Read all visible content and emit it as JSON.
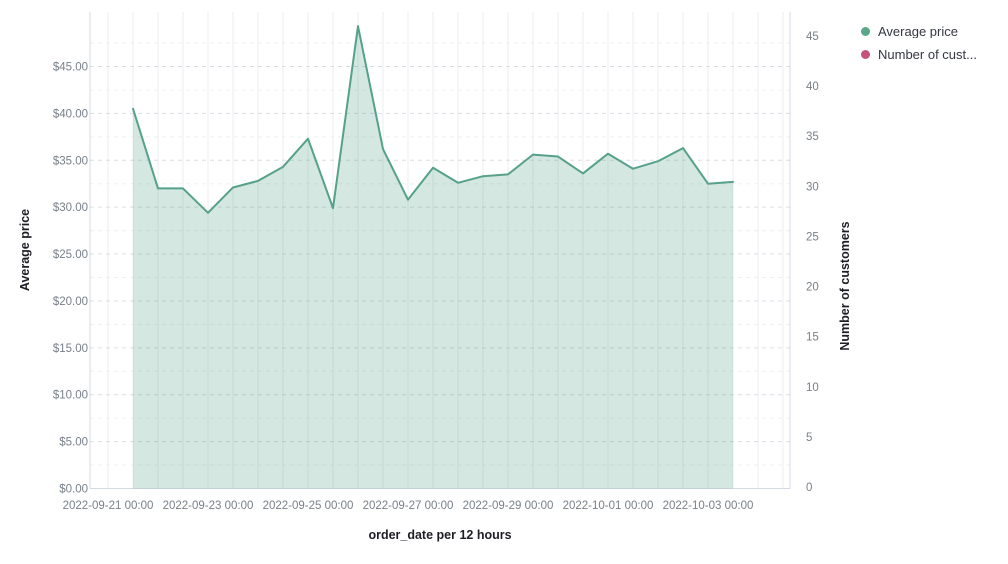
{
  "colors": {
    "line": "#55A189",
    "area_fill": "rgba(85,161,137,0.25)",
    "legend_average_price": "#5AA78A",
    "legend_customers": "#C4537B",
    "grid_vertical": "#e9edf0",
    "grid_major": "#d9dde3",
    "grid_minor": "#edf0f3",
    "axis_line": "#d3dae6",
    "tick_text": "#798089",
    "title_text": "#1d1e24"
  },
  "chart_data": {
    "type": "area",
    "title": "",
    "xlabel": "order_date per 12 hours",
    "ylabel": "Average price",
    "ylabel_right": "Number of customers",
    "ylim_left": [
      0,
      45
    ],
    "ylim_right": [
      0,
      45
    ],
    "grid": true,
    "legend": {
      "position": "top-right",
      "items": [
        {
          "label": "Average price",
          "color": "#5AA78A"
        },
        {
          "label": "Number of cust...",
          "color": "#C4537B"
        }
      ]
    },
    "axes": {
      "left_ticks": [
        "$0.00",
        "$5.00",
        "$10.00",
        "$15.00",
        "$20.00",
        "$25.00",
        "$30.00",
        "$35.00",
        "$40.00",
        "$45.00"
      ],
      "right_ticks": [
        "0",
        "5",
        "10",
        "15",
        "20",
        "25",
        "30",
        "35",
        "40",
        "45"
      ],
      "bottom_ticks": [
        "2022-09-21 00:00",
        "2022-09-23 00:00",
        "2022-09-25 00:00",
        "2022-09-27 00:00",
        "2022-09-29 00:00",
        "2022-10-01 00:00",
        "2022-10-03 00:00"
      ]
    },
    "series": [
      {
        "name": "Average price",
        "axis": "left",
        "x": [
          "2022-09-21 12:00",
          "2022-09-22 00:00",
          "2022-09-22 12:00",
          "2022-09-23 00:00",
          "2022-09-23 12:00",
          "2022-09-24 00:00",
          "2022-09-24 12:00",
          "2022-09-25 00:00",
          "2022-09-25 12:00",
          "2022-09-26 00:00",
          "2022-09-26 12:00",
          "2022-09-27 00:00",
          "2022-09-27 12:00",
          "2022-09-28 00:00",
          "2022-09-28 12:00",
          "2022-09-29 00:00",
          "2022-09-29 12:00",
          "2022-09-30 00:00",
          "2022-09-30 12:00",
          "2022-10-01 00:00",
          "2022-10-01 12:00",
          "2022-10-02 00:00",
          "2022-10-02 12:00",
          "2022-10-03 00:00",
          "2022-10-03 12:00"
        ],
        "values": [
          40.5,
          32.0,
          32.0,
          29.4,
          32.1,
          32.8,
          34.3,
          37.3,
          29.9,
          49.3,
          36.2,
          30.8,
          34.2,
          32.6,
          33.3,
          33.5,
          35.6,
          35.4,
          33.6,
          35.7,
          34.1,
          34.9,
          36.3,
          32.5,
          32.7
        ]
      },
      {
        "name": "Number of customers",
        "axis": "right",
        "x": [],
        "values": []
      }
    ]
  }
}
